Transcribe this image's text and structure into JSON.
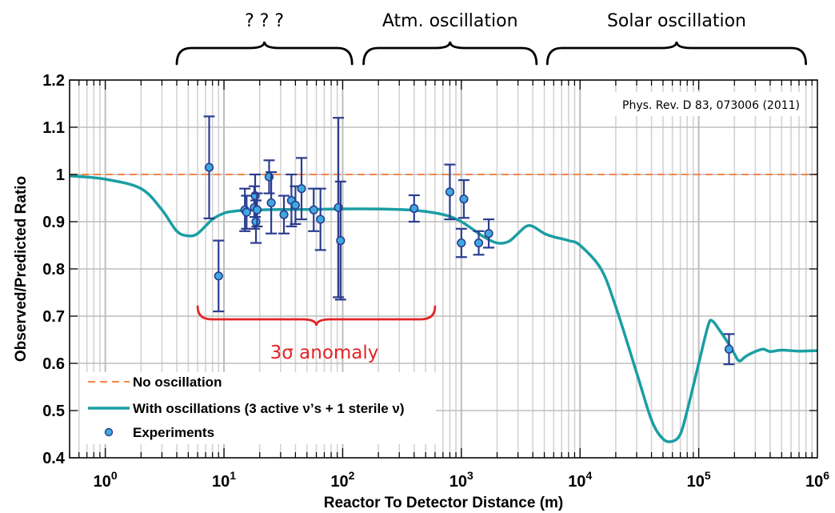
{
  "chart_data": {
    "type": "line",
    "title": "",
    "xlabel": "Reactor To Detector Distance (m)",
    "ylabel": "Observed/Predicted Ratio",
    "x_scale": "log",
    "xlim": [
      0.5,
      1000000
    ],
    "ylim": [
      0.4,
      1.2
    ],
    "x_ticks": [
      {
        "value": 1,
        "base": "10",
        "exp": "0"
      },
      {
        "value": 10,
        "base": "10",
        "exp": "1"
      },
      {
        "value": 100,
        "base": "10",
        "exp": "2"
      },
      {
        "value": 1000,
        "base": "10",
        "exp": "3"
      },
      {
        "value": 10000,
        "base": "10",
        "exp": "4"
      },
      {
        "value": 100000,
        "base": "10",
        "exp": "5"
      },
      {
        "value": 1000000,
        "base": "10",
        "exp": "6"
      }
    ],
    "y_ticks": [
      {
        "value": 0.4,
        "label": "0.4"
      },
      {
        "value": 0.5,
        "label": "0.5"
      },
      {
        "value": 0.6,
        "label": "0.6"
      },
      {
        "value": 0.7,
        "label": "0.7"
      },
      {
        "value": 0.8,
        "label": "0.8"
      },
      {
        "value": 0.9,
        "label": "0.9"
      },
      {
        "value": 1.0,
        "label": "1"
      },
      {
        "value": 1.1,
        "label": "1.1"
      },
      {
        "value": 1.2,
        "label": "1.2"
      }
    ],
    "grid": true,
    "legend_position": "bottom-left",
    "citation": "Phys. Rev. D 83, 073006 (2011)",
    "series": [
      {
        "name": "No oscillation",
        "kind": "dashed-line",
        "color": "#f4874b",
        "x": [
          0.5,
          1000000
        ],
        "y": [
          1.0,
          1.0
        ]
      },
      {
        "name": "With oscillations (3 active ν’s  + 1 sterile ν)",
        "kind": "line",
        "color": "#1a9ea3",
        "x": [
          0.5,
          1,
          2,
          3,
          4,
          5,
          6,
          8,
          10,
          12,
          15,
          20,
          30,
          50,
          100,
          200,
          400,
          700,
          1000,
          1500,
          2000,
          2500,
          3000,
          3500,
          4000,
          5000,
          6000,
          8000,
          10000,
          15000,
          20000,
          30000,
          40000,
          50000,
          60000,
          70000,
          80000,
          100000,
          120000,
          130000,
          150000,
          180000,
          200000,
          220000,
          250000,
          300000,
          350000,
          400000,
          500000,
          700000,
          1000000
        ],
        "y": [
          0.997,
          0.99,
          0.97,
          0.925,
          0.88,
          0.87,
          0.875,
          0.905,
          0.918,
          0.922,
          0.924,
          0.925,
          0.926,
          0.926,
          0.927,
          0.927,
          0.924,
          0.915,
          0.9,
          0.87,
          0.855,
          0.858,
          0.875,
          0.89,
          0.89,
          0.875,
          0.868,
          0.86,
          0.85,
          0.8,
          0.72,
          0.58,
          0.48,
          0.44,
          0.435,
          0.45,
          0.5,
          0.6,
          0.68,
          0.69,
          0.67,
          0.64,
          0.62,
          0.605,
          0.615,
          0.625,
          0.63,
          0.625,
          0.628,
          0.626,
          0.627
        ]
      },
      {
        "name": "Experiments",
        "kind": "scatter-errorbar",
        "color": "#2b3d8f",
        "fill": "#3fa9e0",
        "points": [
          {
            "x": 7.5,
            "y": 1.015,
            "err": 0.108
          },
          {
            "x": 9.0,
            "y": 0.785,
            "err": 0.075
          },
          {
            "x": 15.0,
            "y": 0.925,
            "err": 0.045
          },
          {
            "x": 15.5,
            "y": 0.92,
            "err": 0.035
          },
          {
            "x": 18.0,
            "y": 0.93,
            "err": 0.045
          },
          {
            "x": 18.3,
            "y": 0.955,
            "err": 0.045
          },
          {
            "x": 18.6,
            "y": 0.9,
            "err": 0.045
          },
          {
            "x": 19.0,
            "y": 0.925,
            "err": 0.035
          },
          {
            "x": 24.0,
            "y": 0.995,
            "err": 0.035
          },
          {
            "x": 25.0,
            "y": 0.94,
            "err": 0.065
          },
          {
            "x": 32.0,
            "y": 0.915,
            "err": 0.04
          },
          {
            "x": 37.0,
            "y": 0.945,
            "err": 0.055
          },
          {
            "x": 40.0,
            "y": 0.935,
            "err": 0.04
          },
          {
            "x": 45.0,
            "y": 0.97,
            "err": 0.065
          },
          {
            "x": 57.0,
            "y": 0.925,
            "err": 0.045
          },
          {
            "x": 65.0,
            "y": 0.905,
            "err": 0.065
          },
          {
            "x": 92.0,
            "y": 0.93,
            "err": 0.19
          },
          {
            "x": 96.0,
            "y": 0.86,
            "err": 0.125
          },
          {
            "x": 400.0,
            "y": 0.928,
            "err": 0.028
          },
          {
            "x": 800.0,
            "y": 0.963,
            "err": 0.058
          },
          {
            "x": 1000.0,
            "y": 0.855,
            "err": 0.03
          },
          {
            "x": 1050.0,
            "y": 0.948,
            "err": 0.04
          },
          {
            "x": 1400.0,
            "y": 0.855,
            "err": 0.025
          },
          {
            "x": 1700.0,
            "y": 0.875,
            "err": 0.03
          },
          {
            "x": 180000.0,
            "y": 0.63,
            "err": 0.032
          }
        ]
      }
    ],
    "annotations": [
      {
        "id": "unknown",
        "text": "? ? ?",
        "x_from": 4,
        "x_to": 120
      },
      {
        "id": "atm",
        "text": "Atm. oscillation",
        "x_from": 150,
        "x_to": 4300
      },
      {
        "id": "solar",
        "text": "Solar oscillation",
        "x_from": 5300,
        "x_to": 800000
      },
      {
        "id": "anomaly",
        "text": "3σ anomaly",
        "x_from": 6,
        "x_to": 600,
        "color": "#e32526"
      }
    ]
  }
}
